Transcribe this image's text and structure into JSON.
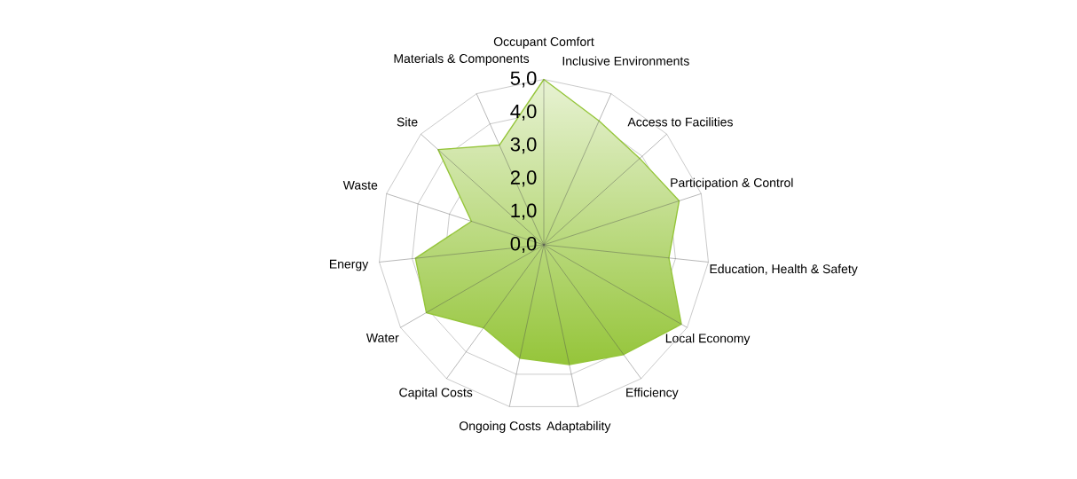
{
  "chart_data": {
    "type": "radar",
    "categories": [
      "Occupant Comfort",
      "Inclusive Environments",
      "Access to Facilities",
      "Participation & Control",
      "Education, Health & Safety",
      "Local Economy",
      "Efficiency",
      "Adaptability",
      "Ongoing Costs",
      "Capital Costs",
      "Water",
      "Energy",
      "Waste",
      "Site",
      "Materials & Components"
    ],
    "series": [
      {
        "color": "#95c53a",
        "values": [
          5.0,
          4.1,
          3.9,
          4.3,
          3.8,
          4.8,
          4.1,
          3.7,
          3.5,
          3.1,
          4.1,
          3.9,
          2.3,
          4.3,
          3.3
        ]
      }
    ],
    "ylim": [
      0,
      5
    ],
    "yticks": [
      {
        "value": 0,
        "label": "0,0"
      },
      {
        "value": 1,
        "label": "1,0"
      },
      {
        "value": 2,
        "label": "2,0"
      },
      {
        "value": 3,
        "label": "3,0"
      },
      {
        "value": 4,
        "label": "4,0"
      },
      {
        "value": 5,
        "label": "5,0"
      }
    ],
    "grid": true
  }
}
